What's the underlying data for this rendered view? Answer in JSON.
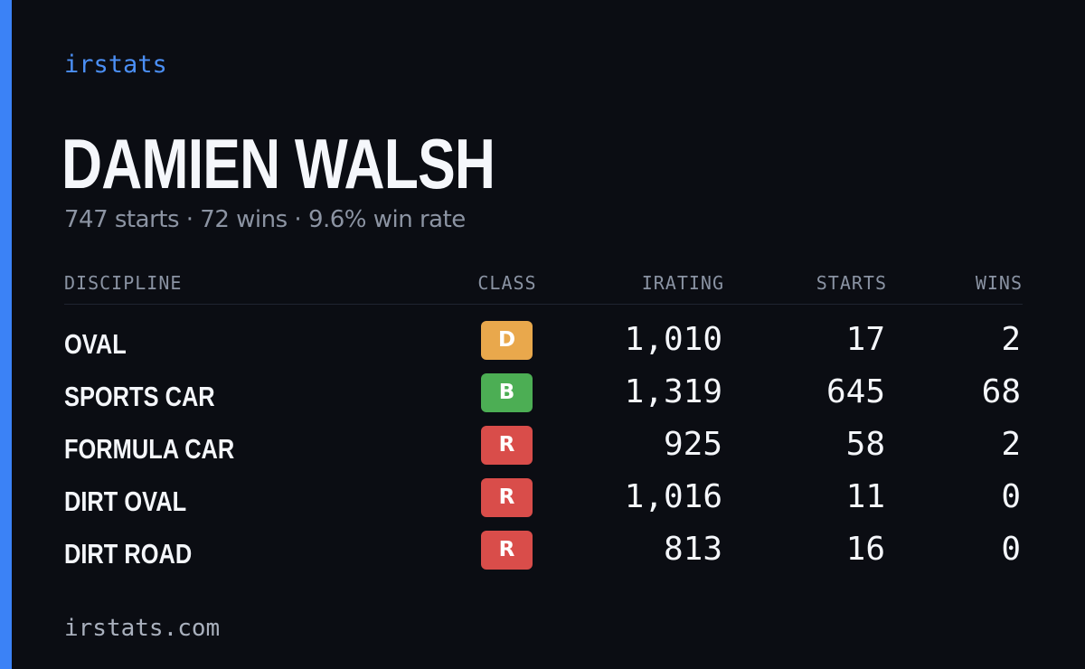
{
  "brand": "irstats",
  "player": {
    "name": "DAMIEN WALSH",
    "summary": "747 starts · 72 wins · 9.6% win rate"
  },
  "table": {
    "headers": {
      "discipline": "DISCIPLINE",
      "class": "CLASS",
      "irating": "IRATING",
      "starts": "STARTS",
      "wins": "WINS"
    },
    "rows": [
      {
        "discipline": "OVAL",
        "class": "D",
        "class_color": "#e9a84c",
        "irating": "1,010",
        "starts": "17",
        "wins": "2"
      },
      {
        "discipline": "SPORTS CAR",
        "class": "B",
        "class_color": "#4cae54",
        "irating": "1,319",
        "starts": "645",
        "wins": "68"
      },
      {
        "discipline": "FORMULA CAR",
        "class": "R",
        "class_color": "#d94d4a",
        "irating": "925",
        "starts": "58",
        "wins": "2"
      },
      {
        "discipline": "DIRT OVAL",
        "class": "R",
        "class_color": "#d94d4a",
        "irating": "1,016",
        "starts": "11",
        "wins": "0"
      },
      {
        "discipline": "DIRT ROAD",
        "class": "R",
        "class_color": "#d94d4a",
        "irating": "813",
        "starts": "16",
        "wins": "0"
      }
    ]
  },
  "footer": "irstats.com",
  "colors": {
    "background": "#0b0d13",
    "accent": "#3b82f6"
  }
}
